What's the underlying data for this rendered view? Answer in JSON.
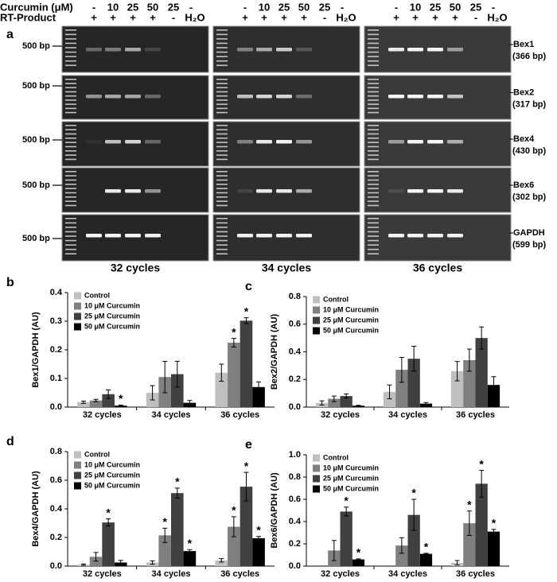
{
  "gel": {
    "panel": "a",
    "curcumin_label": "Curcumin (μM)",
    "rt_label": "RT-Product",
    "curcumin": [
      "-",
      "10",
      "25",
      "50",
      "25",
      "-"
    ],
    "rt": [
      "+",
      "+",
      "+",
      "+",
      "-",
      "H₂O"
    ],
    "marker": "500 bp",
    "genes": [
      {
        "name": "Bex1",
        "size": "(366 bp)"
      },
      {
        "name": "Bex2",
        "size": "(317 bp)"
      },
      {
        "name": "Bex4",
        "size": "(430 bp)"
      },
      {
        "name": "Bex6",
        "size": "(302 bp)"
      },
      {
        "name": "GAPDH",
        "size": "(599 bp)"
      }
    ],
    "cycles": [
      "32 cycles",
      "34 cycles",
      "36 cycles"
    ]
  },
  "chart_data": [
    {
      "type": "bar",
      "panel": "b",
      "y_label": "Bex1/GAPDH (AU)",
      "categories": [
        "32 cycles",
        "34 cycles",
        "36 cycles"
      ],
      "ylim": [
        0,
        0.4
      ],
      "yticks": [
        {
          "value": 0,
          "label": "0.0"
        },
        0.1,
        0.2,
        0.3,
        0.4
      ],
      "series": [
        {
          "name": "Control",
          "color": "#bfbfbf",
          "values": [
            0.017,
            0.05,
            0.12
          ],
          "errors": [
            0.004,
            0.025,
            0.03
          ],
          "sig": [
            null,
            null,
            null
          ]
        },
        {
          "name": "10 μM Curcumin",
          "color": "#808080",
          "values": [
            0.023,
            0.105,
            0.225
          ],
          "errors": [
            0.004,
            0.055,
            0.015
          ],
          "sig": [
            null,
            null,
            "*"
          ]
        },
        {
          "name": "25 μM Curcumin",
          "color": "#404040",
          "values": [
            0.045,
            0.115,
            0.302
          ],
          "errors": [
            0.015,
            0.045,
            0.01
          ],
          "sig": [
            null,
            null,
            "*"
          ]
        },
        {
          "name": "50 μM Curcumin",
          "color": "#000000",
          "values": [
            0.005,
            0.015,
            0.07
          ],
          "errors": [
            0.002,
            0.008,
            0.018
          ],
          "sig": [
            "*",
            null,
            null
          ]
        }
      ]
    },
    {
      "type": "bar",
      "panel": "c",
      "y_label": "Bex2/GAPDH (AU)",
      "categories": [
        "32 cycles",
        "34 cycles",
        "36 cycles"
      ],
      "ylim": [
        0,
        0.8
      ],
      "yticks": [
        {
          "value": 0,
          "label": "0.0"
        },
        0.2,
        0.4,
        0.6,
        0.8
      ],
      "series": [
        {
          "name": "Control",
          "color": "#bfbfbf",
          "values": [
            0.03,
            0.11,
            0.26
          ],
          "errors": [
            0.015,
            0.05,
            0.07
          ],
          "sig": [
            null,
            null,
            null
          ]
        },
        {
          "name": "10 μM Curcumin",
          "color": "#808080",
          "values": [
            0.06,
            0.27,
            0.34
          ],
          "errors": [
            0.02,
            0.09,
            0.08
          ],
          "sig": [
            null,
            null,
            null
          ]
        },
        {
          "name": "25 μM Curcumin",
          "color": "#404040",
          "values": [
            0.08,
            0.35,
            0.5
          ],
          "errors": [
            0.015,
            0.09,
            0.08
          ],
          "sig": [
            null,
            null,
            null
          ]
        },
        {
          "name": "50 μM Curcumin",
          "color": "#000000",
          "values": [
            0.01,
            0.025,
            0.16
          ],
          "errors": [
            0.003,
            0.008,
            0.06
          ],
          "sig": [
            null,
            null,
            null
          ]
        }
      ]
    },
    {
      "type": "bar",
      "panel": "d",
      "y_label": "Bex4/GAPDH (AU)",
      "categories": [
        "32 cycles",
        "34 cycles",
        "36 cycles"
      ],
      "ylim": [
        0,
        0.8
      ],
      "yticks": [
        {
          "value": 0,
          "label": "0.0"
        },
        0.2,
        0.4,
        0.6,
        0.8
      ],
      "series": [
        {
          "name": "Control",
          "color": "#bfbfbf",
          "values": [
            0.01,
            0.025,
            0.04
          ],
          "errors": [
            0.005,
            0.012,
            0.012
          ],
          "sig": [
            null,
            null,
            null
          ]
        },
        {
          "name": "10 μM Curcumin",
          "color": "#808080",
          "values": [
            0.065,
            0.215,
            0.275
          ],
          "errors": [
            0.03,
            0.05,
            0.07
          ],
          "sig": [
            null,
            "*",
            "*"
          ]
        },
        {
          "name": "25 μM Curcumin",
          "color": "#404040",
          "values": [
            0.305,
            0.51,
            0.555
          ],
          "errors": [
            0.025,
            0.035,
            0.1
          ],
          "sig": [
            "*",
            "*",
            "*"
          ]
        },
        {
          "name": "50 μM Curcumin",
          "color": "#000000",
          "values": [
            0.025,
            0.105,
            0.195
          ],
          "errors": [
            0.015,
            0.01,
            0.012
          ],
          "sig": [
            null,
            "*",
            "*"
          ]
        }
      ]
    },
    {
      "type": "bar",
      "panel": "e",
      "y_label": "Bex6/GAPDH (AU)",
      "categories": [
        "32 cycles",
        "34 cycles",
        "36 cycles"
      ],
      "ylim": [
        0,
        1.0
      ],
      "yticks": [
        {
          "value": 0,
          "label": "0.0"
        },
        0.2,
        0.4,
        0.6,
        0.8,
        {
          "value": 1.0,
          "label": "1.0"
        }
      ],
      "series": [
        {
          "name": "Control",
          "color": "#bfbfbf",
          "values": [
            0,
            0,
            0.03
          ],
          "errors": [
            0,
            0,
            0.02
          ],
          "sig": [
            null,
            null,
            null
          ]
        },
        {
          "name": "10 μM Curcumin",
          "color": "#808080",
          "values": [
            0.14,
            0.185,
            0.385
          ],
          "errors": [
            0.09,
            0.07,
            0.11
          ],
          "sig": [
            null,
            null,
            "*"
          ]
        },
        {
          "name": "25 μM Curcumin",
          "color": "#404040",
          "values": [
            0.49,
            0.46,
            0.74
          ],
          "errors": [
            0.04,
            0.14,
            0.12
          ],
          "sig": [
            "*",
            "*",
            "*"
          ]
        },
        {
          "name": "50 μM Curcumin",
          "color": "#000000",
          "values": [
            0.06,
            0.11,
            0.31
          ],
          "errors": [
            0.005,
            0.005,
            0.02
          ],
          "sig": [
            "*",
            "*",
            "*"
          ]
        }
      ]
    }
  ]
}
